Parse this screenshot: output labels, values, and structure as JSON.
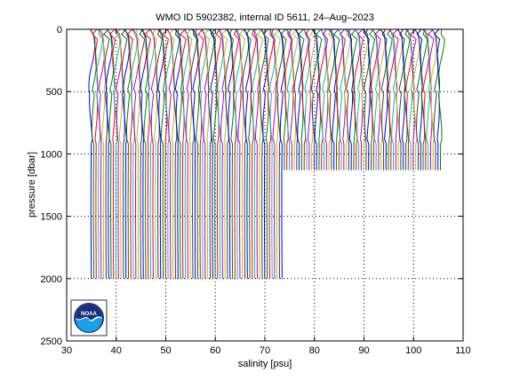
{
  "chart_data": {
    "type": "line",
    "title": "WMO ID 5902382, internal ID 5611, 24–Aug–2023",
    "xlabel": "salinity [psu]",
    "ylabel": "pressure [dbar]",
    "xlim": [
      30,
      110
    ],
    "ylim": [
      0,
      2500
    ],
    "y_reversed": true,
    "x_ticks": [
      "30",
      "40",
      "50",
      "60",
      "70",
      "80",
      "90",
      "100",
      "110"
    ],
    "y_ticks": [
      "0",
      "500",
      "1000",
      "1500",
      "2000",
      "2500"
    ],
    "grid": true,
    "series_offset_step": 0.5,
    "series_count": 142,
    "deep_profile_max_pressure": 2000,
    "shallow_profile_max_pressure": 1130,
    "deep_profile_count": 78,
    "palette": [
      "#0000ff",
      "#008000",
      "#ff0000",
      "#00bfbf",
      "#bf00bf",
      "#bfbf00",
      "#404040"
    ]
  },
  "logo": {
    "name": "noaa-logo",
    "text": "NOAA"
  },
  "colors": {
    "axes": "#000000",
    "background": "#ffffff"
  }
}
